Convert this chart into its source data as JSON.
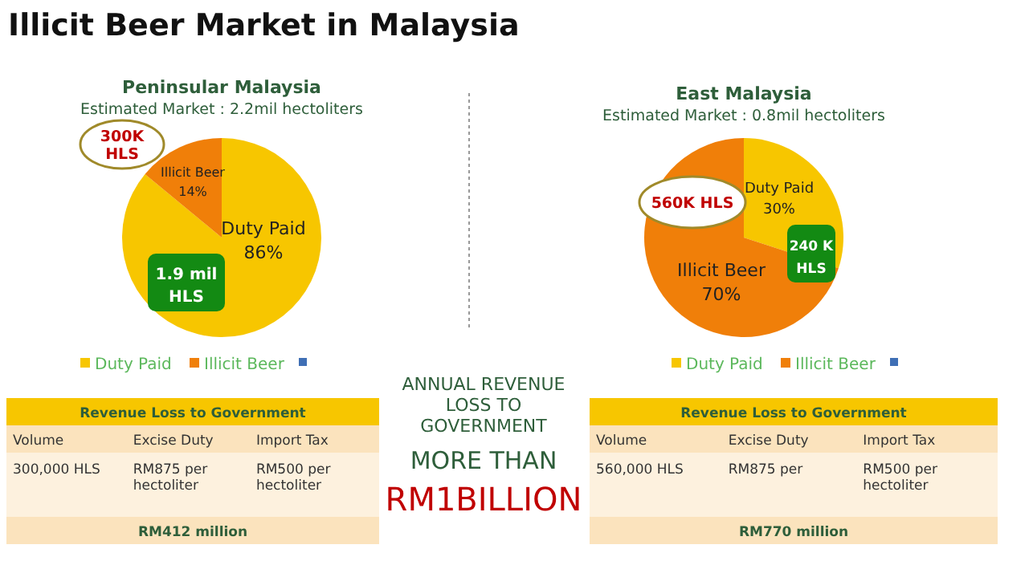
{
  "chart_data": [
    {
      "type": "pie",
      "title": "Peninsular Malaysia",
      "subtitle": "Estimated Market : 2.2mil hectoliters",
      "categories": [
        "Duty Paid",
        "Illicit Beer"
      ],
      "values": [
        86,
        14
      ],
      "colors": [
        "#f7c600",
        "#f07f09"
      ],
      "value_labels": [
        "86%",
        "14%"
      ],
      "legend": "bottom",
      "annotations": [
        "1.9 mil HLS",
        "300K HLS",
        "Revenue Loss to Government",
        "Volume",
        "Excise Duty",
        "Import Tax",
        "300,000 HLS",
        "RM875 per hectoliter",
        "RM500 per hectoliter",
        "RM412 million"
      ]
    },
    {
      "type": "pie",
      "title": "East Malaysia",
      "subtitle": "Estimated Market : 0.8mil hectoliters",
      "categories": [
        "Duty Paid",
        "Illicit Beer"
      ],
      "values": [
        30,
        70
      ],
      "colors": [
        "#f7c600",
        "#f07f09"
      ],
      "value_labels": [
        "30%",
        "70%"
      ],
      "legend": "bottom",
      "annotations": [
        "240 K HLS",
        "560K HLS",
        "Revenue Loss to Government",
        "Volume",
        "Excise Duty",
        "Import Tax",
        "560,000 HLS",
        "RM875 per",
        "RM500 per hectoliter",
        "RM770 million"
      ]
    },
    {
      "type": "other",
      "title": "Illicit Beer Market in Malaysia",
      "annotations": [
        "ANNUAL REVENUE LOSS TO GOVERNMENT",
        "MORE THAN",
        "RM1BILLION"
      ]
    }
  ]
}
